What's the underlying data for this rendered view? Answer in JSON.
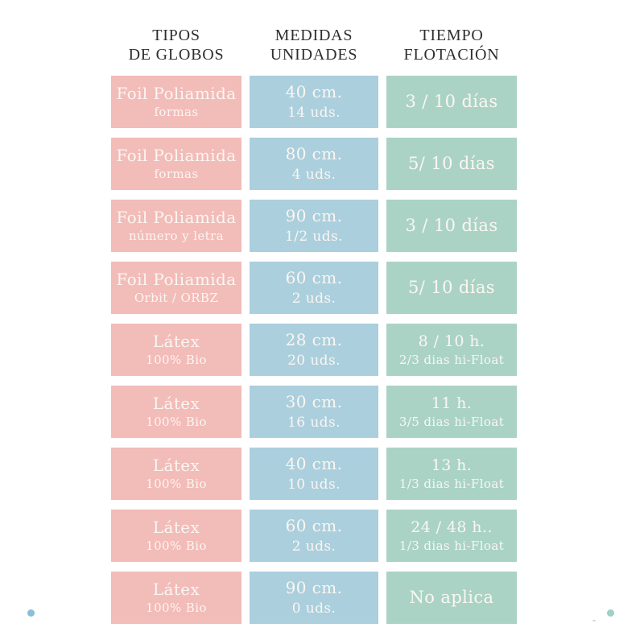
{
  "colors": {
    "pink": "#f2bcb9",
    "blue": "#abcfdd",
    "green": "#aad3c6",
    "header_text": "#2e2e2e",
    "cell_text": "#fbf6f2",
    "dot_left": "#8abfd6",
    "dot_right": "#9ed0c6"
  },
  "chart_data": {
    "type": "table",
    "columns": [
      {
        "title_lines": [
          "TIPOS",
          "DE GLOBOS"
        ],
        "color": "#f2bcb9"
      },
      {
        "title_lines": [
          "MEDIDAS",
          "UNIDADES"
        ],
        "color": "#abcfdd"
      },
      {
        "title_lines": [
          "TIEMPO",
          "FLOTACIÓN"
        ],
        "color": "#aad3c6"
      }
    ],
    "rows": [
      {
        "cells": [
          [
            "Foil Poliamida",
            "formas"
          ],
          [
            "40 cm.",
            "14 uds."
          ],
          [
            "3 / 10 días"
          ]
        ]
      },
      {
        "cells": [
          [
            "Foil Poliamida",
            "formas"
          ],
          [
            "80 cm.",
            "4 uds."
          ],
          [
            "5/ 10 días"
          ]
        ]
      },
      {
        "cells": [
          [
            "Foil Poliamida",
            "número y letra"
          ],
          [
            "90 cm.",
            "1/2 uds."
          ],
          [
            "3 / 10 días"
          ]
        ]
      },
      {
        "cells": [
          [
            "Foil Poliamida",
            "Orbit / ORBZ"
          ],
          [
            "60 cm.",
            "2 uds."
          ],
          [
            "5/ 10 días"
          ]
        ]
      },
      {
        "cells": [
          [
            "Látex",
            "100% Bio"
          ],
          [
            "28 cm.",
            "20 uds."
          ],
          [
            "8 / 10 h.",
            "2/3 dias hi-Float"
          ]
        ]
      },
      {
        "cells": [
          [
            "Látex",
            "100% Bio"
          ],
          [
            "30 cm.",
            "16 uds."
          ],
          [
            "11 h.",
            "3/5 dias hi-Float"
          ]
        ]
      },
      {
        "cells": [
          [
            "Látex",
            "100% Bio"
          ],
          [
            "40 cm.",
            "10 uds."
          ],
          [
            "13 h.",
            "1/3 dias hi-Float"
          ]
        ]
      },
      {
        "cells": [
          [
            "Látex",
            "100% Bio"
          ],
          [
            "60 cm.",
            "2 uds."
          ],
          [
            "24 / 48 h..",
            "1/3 dias hi-Float"
          ]
        ]
      },
      {
        "cells": [
          [
            "Látex",
            "100% Bio"
          ],
          [
            "90 cm.",
            "0 uds."
          ],
          [
            "No aplica"
          ]
        ]
      }
    ]
  }
}
